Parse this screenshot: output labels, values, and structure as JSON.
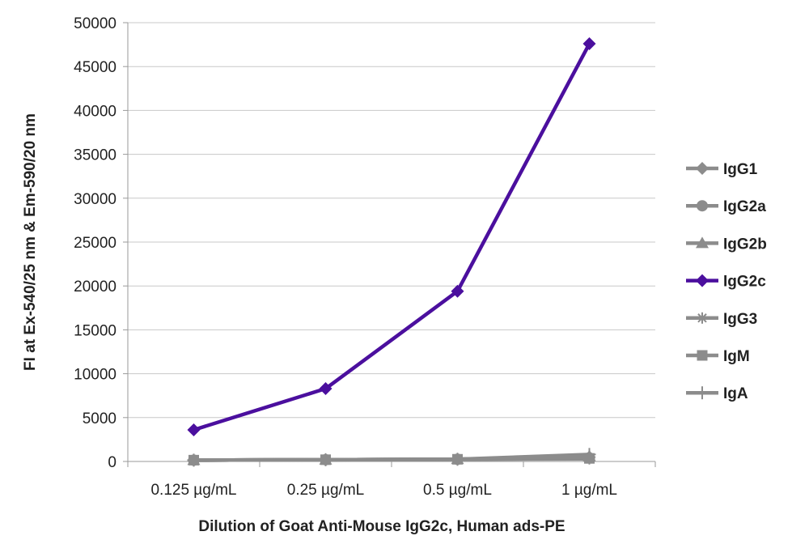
{
  "chart_data": {
    "type": "line",
    "title": "",
    "xlabel": "Dilution of Goat Anti-Mouse IgG2c, Human ads-PE",
    "ylabel": "FI at Ex-540/25 nm & Em-590/20 nm",
    "categories": [
      "0.125 µg/mL",
      "0.25 µg/mL",
      "0.5 µg/mL",
      "1 µg/mL"
    ],
    "ylim": [
      0,
      50000
    ],
    "yticks": [
      0,
      5000,
      10000,
      15000,
      20000,
      25000,
      30000,
      35000,
      40000,
      45000,
      50000
    ],
    "grid": true,
    "legend_position": "right",
    "series": [
      {
        "name": "IgG1",
        "values": [
          150,
          200,
          250,
          500
        ],
        "color": "#8c8c8c",
        "marker": "diamond"
      },
      {
        "name": "IgG2a",
        "values": [
          150,
          200,
          250,
          400
        ],
        "color": "#8c8c8c",
        "marker": "circle"
      },
      {
        "name": "IgG2b",
        "values": [
          150,
          200,
          250,
          600
        ],
        "color": "#8c8c8c",
        "marker": "triangle"
      },
      {
        "name": "IgG2c",
        "values": [
          3600,
          8300,
          19400,
          47600
        ],
        "color": "#4b0f9e",
        "marker": "diamond"
      },
      {
        "name": "IgG3",
        "values": [
          150,
          200,
          250,
          300
        ],
        "color": "#8c8c8c",
        "marker": "star"
      },
      {
        "name": "IgM",
        "values": [
          150,
          200,
          250,
          350
        ],
        "color": "#8c8c8c",
        "marker": "square"
      },
      {
        "name": "IgA",
        "values": [
          150,
          200,
          250,
          800
        ],
        "color": "#8c8c8c",
        "marker": "plus"
      }
    ]
  }
}
